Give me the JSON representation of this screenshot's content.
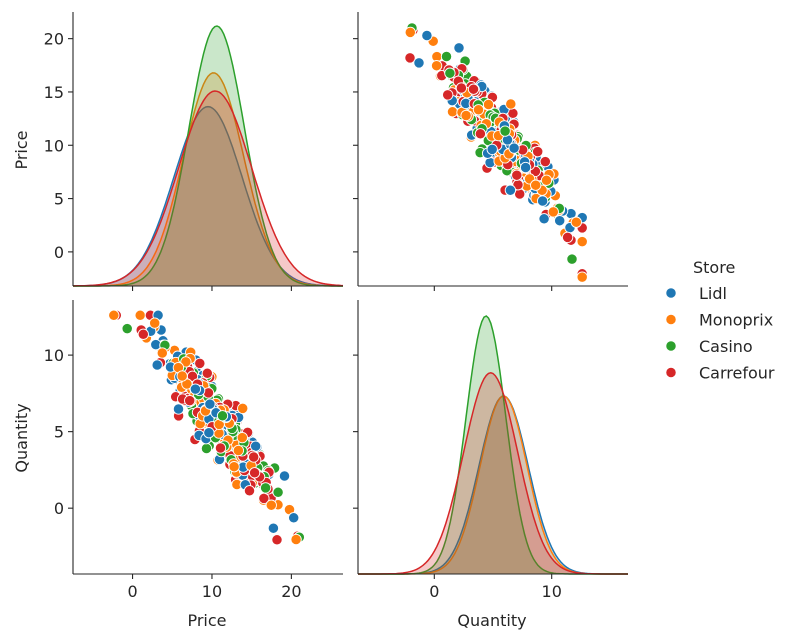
{
  "chart_data": {
    "type": "pairplot",
    "variables": [
      "Price",
      "Quantity"
    ],
    "hue_label": "Store",
    "series": [
      {
        "name": "Lidl",
        "color": "#1f77b4"
      },
      {
        "name": "Monoprix",
        "color": "#ff7f0e"
      },
      {
        "name": "Casino",
        "color": "#2ca02c"
      },
      {
        "name": "Carrefour",
        "color": "#d62728"
      }
    ],
    "axes": {
      "Price": {
        "range": [
          -7.5,
          26.5
        ],
        "ticks": [
          0,
          10,
          20
        ],
        "row_range": [
          -3.2,
          22.5
        ],
        "row_ticks": [
          0,
          5,
          10,
          15,
          20
        ]
      },
      "Quantity": {
        "range": [
          -6.5,
          16.5
        ],
        "ticks": [
          0,
          10
        ],
        "row_range": [
          -4.3,
          13.6
        ],
        "row_ticks": [
          0,
          5,
          10
        ]
      }
    },
    "diagonal_kde": {
      "Price": [
        {
          "name": "Lidl",
          "mean": 9.5,
          "std": 4.3,
          "peak_density_rel": 0.69
        },
        {
          "name": "Monoprix",
          "mean": 10.2,
          "std": 3.8,
          "peak_density_rel": 0.82
        },
        {
          "name": "Casino",
          "mean": 10.6,
          "std": 3.5,
          "peak_density_rel": 1.0
        },
        {
          "name": "Carrefour",
          "mean": 10.4,
          "std": 4.6,
          "peak_density_rel": 0.75
        }
      ],
      "Quantity": [
        {
          "name": "Lidl",
          "mean": 5.9,
          "std": 2.1,
          "peak_density_rel": 0.69
        },
        {
          "name": "Monoprix",
          "mean": 5.9,
          "std": 2.0,
          "peak_density_rel": 0.69
        },
        {
          "name": "Casino",
          "mean": 4.4,
          "std": 1.7,
          "peak_density_rel": 1.0
        },
        {
          "name": "Carrefour",
          "mean": 4.8,
          "std": 2.3,
          "peak_density_rel": 0.78
        }
      ]
    },
    "scatter": {
      "relation": "Quantity ≈ 12.9 - 0.67 × Price",
      "points_per_store": 100,
      "price_range_observed": [
        -4,
        21
      ],
      "quantity_range_observed": [
        -3.6,
        12.6
      ]
    }
  }
}
